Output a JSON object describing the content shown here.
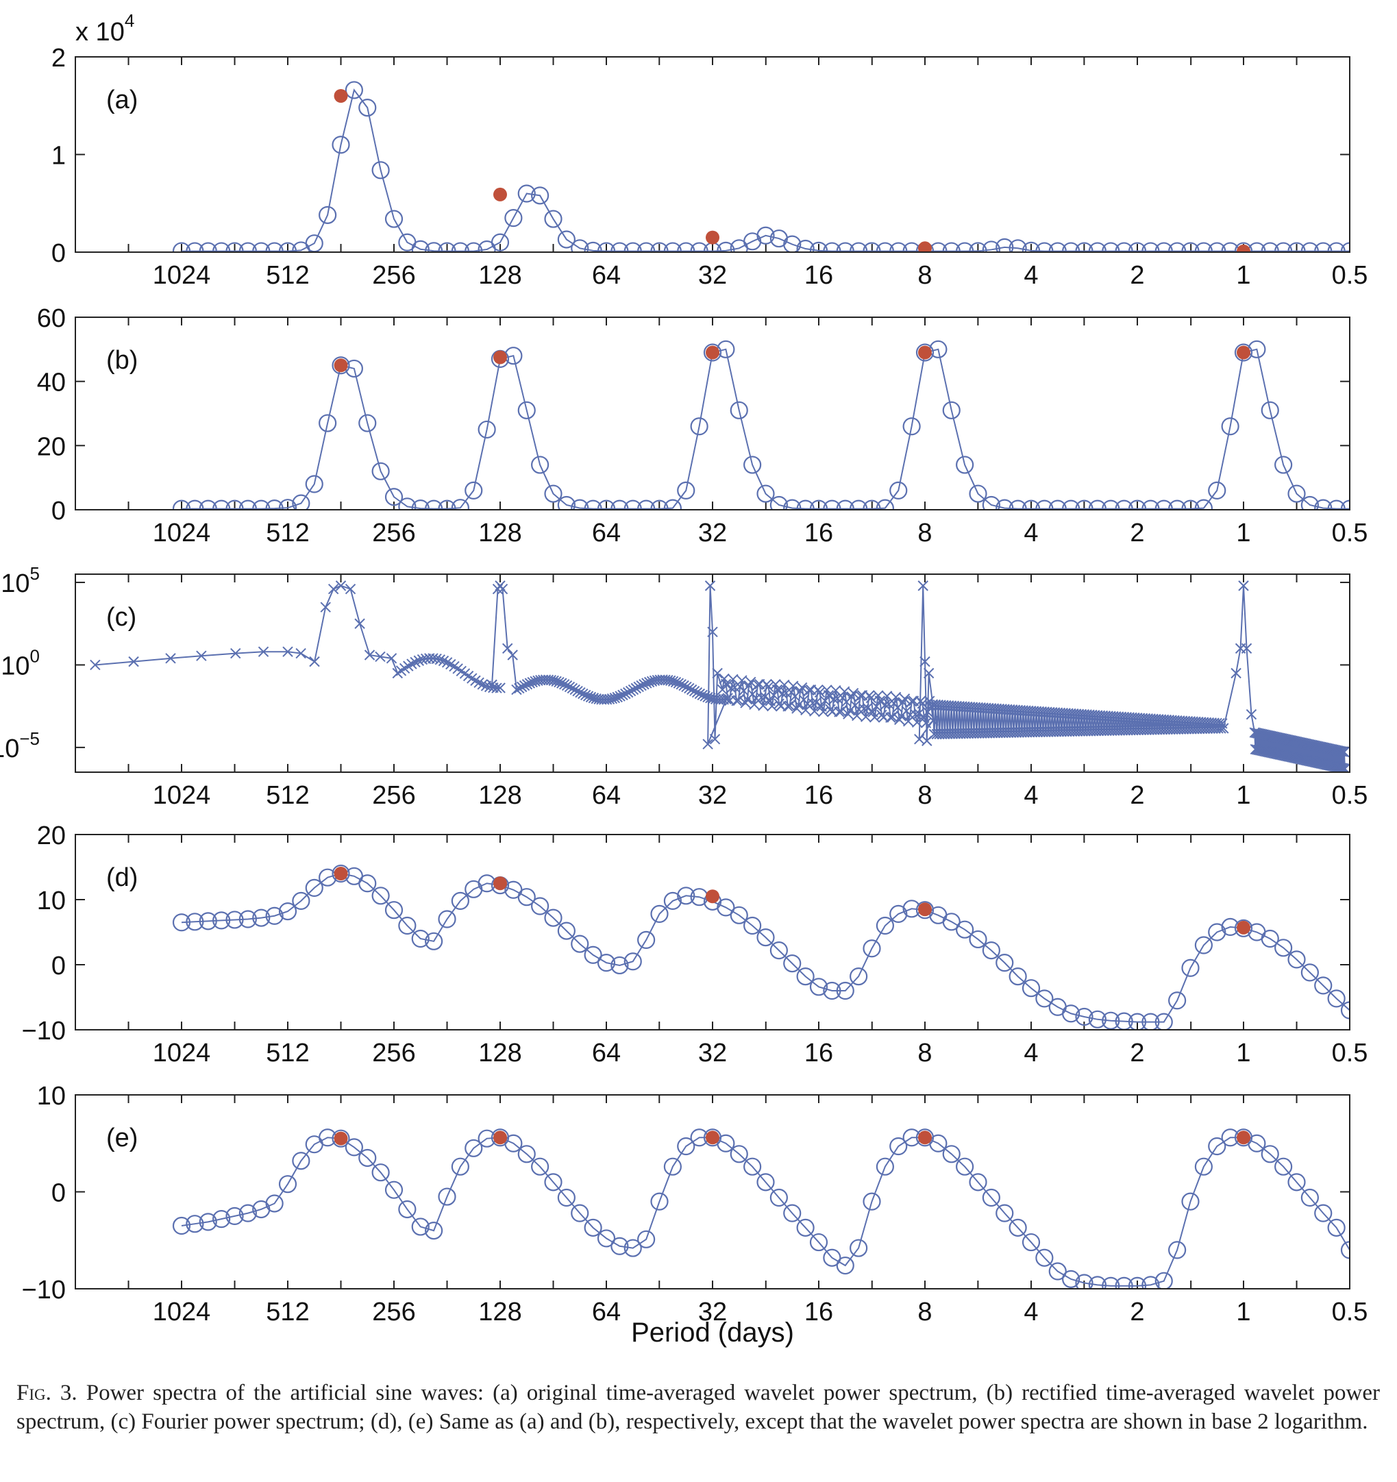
{
  "colors": {
    "line": "#5b70b0",
    "peak": "#c0503a",
    "axis": "#222222"
  },
  "x_tick_labels": [
    "1024",
    "512",
    "256",
    "128",
    "64",
    "32",
    "16",
    "8",
    "4",
    "2",
    "1",
    "0.5"
  ],
  "x_axis_label": "Period (days)",
  "caption": {
    "lead": "Fig. 3.",
    "text": "Power spectra of the artificial sine waves: (a) original time-averaged wavelet power spectrum, (b) rectified time-averaged wavelet power spectrum, (c) Fourier power spectrum; (d), (e) Same as (a) and (b), respectively, except that the wavelet power spectra are shown in base 2 logarithm."
  },
  "chart_data": [
    {
      "id": "a",
      "label": "(a)",
      "type": "line",
      "marker": "circle",
      "x_axis": "period_days_log2",
      "x_range": [
        0.5,
        2048
      ],
      "ylim": [
        0,
        20000
      ],
      "y_ticks": [
        0,
        10000,
        20000
      ],
      "y_tick_labels": [
        "0",
        "1",
        "2"
      ],
      "y_multiplier_label": "x 10",
      "y_multiplier_exponent": "4",
      "grid": false,
      "x_start_period": 1024,
      "x_end_period": 0.5,
      "points_per_octave": 8,
      "y": [
        100,
        100,
        100,
        100,
        100,
        100,
        100,
        100,
        100,
        180,
        900,
        3800,
        11000,
        16600,
        14800,
        8400,
        3400,
        1000,
        300,
        120,
        100,
        100,
        100,
        280,
        1000,
        3500,
        6000,
        5800,
        3400,
        1300,
        400,
        150,
        100,
        100,
        100,
        100,
        100,
        100,
        100,
        100,
        100,
        150,
        400,
        1100,
        1700,
        1400,
        800,
        350,
        150,
        100,
        100,
        100,
        100,
        100,
        100,
        100,
        100,
        100,
        100,
        100,
        110,
        250,
        500,
        400,
        150,
        100,
        100,
        100,
        100,
        100,
        100,
        100,
        100,
        100,
        100,
        100,
        100,
        100,
        100,
        100,
        100,
        100,
        100,
        100,
        100,
        100,
        100,
        100,
        100
      ],
      "peaks": [
        {
          "x": 362,
          "y": 16000
        },
        {
          "x": 128,
          "y": 5900
        },
        {
          "x": 32,
          "y": 1500
        },
        {
          "x": 8,
          "y": 400
        },
        {
          "x": 1,
          "y": 80
        }
      ]
    },
    {
      "id": "b",
      "label": "(b)",
      "type": "line",
      "marker": "circle",
      "x_axis": "period_days_log2",
      "x_range": [
        0.5,
        2048
      ],
      "ylim": [
        0,
        60
      ],
      "y_ticks": [
        0,
        20,
        40,
        60
      ],
      "y_tick_labels": [
        "0",
        "20",
        "40",
        "60"
      ],
      "grid": false,
      "x_start_period": 1024,
      "x_end_period": 0.5,
      "points_per_octave": 8,
      "y": [
        0.3,
        0.3,
        0.3,
        0.3,
        0.3,
        0.3,
        0.3,
        0.4,
        0.6,
        2,
        8,
        27,
        45,
        44,
        27,
        12,
        4,
        1,
        0.4,
        0.3,
        0.3,
        0.6,
        6,
        25,
        47,
        48,
        31,
        14,
        5,
        1.5,
        0.5,
        0.3,
        0.3,
        0.3,
        0.3,
        0.3,
        0.3,
        0.5,
        6,
        26,
        49,
        50,
        31,
        14,
        5,
        1.5,
        0.5,
        0.3,
        0.3,
        0.3,
        0.3,
        0.3,
        0.3,
        0.5,
        6,
        26,
        49,
        50,
        31,
        14,
        5,
        1.5,
        0.5,
        0.3,
        0.3,
        0.3,
        0.3,
        0.3,
        0.3,
        0.3,
        0.3,
        0.3,
        0.3,
        0.3,
        0.3,
        0.3,
        0.3,
        0.5,
        6,
        26,
        49,
        50,
        31,
        14,
        5,
        1.5,
        0.5,
        0.3,
        0.3
      ],
      "peaks": [
        {
          "x": 362,
          "y": 45
        },
        {
          "x": 128,
          "y": 47.5
        },
        {
          "x": 32,
          "y": 49
        },
        {
          "x": 8,
          "y": 49
        },
        {
          "x": 1,
          "y": 49
        }
      ]
    },
    {
      "id": "c",
      "label": "(c)",
      "type": "line",
      "marker": "x",
      "y_scale": "log",
      "ylim_exponent": [
        -6.5,
        5.5
      ],
      "y_tick_exponents": [
        -5,
        0,
        5
      ],
      "y_tick_base": "10",
      "grid": false,
      "note": "Fourier power spectrum, log y-axis",
      "peak_periods": [
        362,
        128,
        32,
        8,
        1
      ],
      "peak_value_exponent": 4.8,
      "low_freq_points": [
        {
          "x": 1800,
          "e": 0.0
        },
        {
          "x": 1400,
          "e": 0.2
        },
        {
          "x": 1100,
          "e": 0.4
        },
        {
          "x": 900,
          "e": 0.55
        },
        {
          "x": 720,
          "e": 0.7
        },
        {
          "x": 600,
          "e": 0.8
        },
        {
          "x": 512,
          "e": 0.8
        },
        {
          "x": 470,
          "e": 0.7
        },
        {
          "x": 430,
          "e": 0.2
        }
      ]
    },
    {
      "id": "d",
      "label": "(d)",
      "type": "line",
      "marker": "circle",
      "x_axis": "period_days_log2",
      "x_range": [
        0.5,
        2048
      ],
      "ylim": [
        -10,
        20
      ],
      "y_ticks": [
        -10,
        0,
        10,
        20
      ],
      "y_tick_labels": [
        "−10",
        "0",
        "10",
        "20"
      ],
      "grid": false,
      "x_start_period": 1024,
      "x_end_period": 0.5,
      "points_per_octave": 8,
      "y": [
        6.5,
        6.6,
        6.7,
        6.8,
        6.9,
        7.0,
        7.2,
        7.5,
        8.2,
        9.8,
        11.8,
        13.4,
        14.0,
        13.6,
        12.5,
        10.6,
        8.4,
        6.0,
        4.0,
        3.6,
        7.0,
        9.8,
        11.6,
        12.5,
        12.2,
        11.5,
        10.4,
        9.0,
        7.2,
        5.2,
        3.2,
        1.5,
        0.3,
        -0.1,
        0.5,
        3.8,
        7.8,
        9.8,
        10.6,
        10.4,
        9.7,
        8.8,
        7.6,
        6.0,
        4.2,
        2.2,
        0.2,
        -1.8,
        -3.4,
        -4.0,
        -4.0,
        -1.8,
        2.5,
        6.0,
        7.8,
        8.6,
        8.4,
        7.6,
        6.6,
        5.4,
        3.9,
        2.2,
        0.3,
        -1.8,
        -3.6,
        -5.2,
        -6.5,
        -7.5,
        -8.0,
        -8.4,
        -8.6,
        -8.7,
        -8.8,
        -8.8,
        -8.8,
        -5.5,
        -0.5,
        3.0,
        5.0,
        5.8,
        5.6,
        5.0,
        4.0,
        2.6,
        0.8,
        -1.2,
        -3.2,
        -5.2,
        -7.0
      ],
      "peaks": [
        {
          "x": 362,
          "y": 14
        },
        {
          "x": 128,
          "y": 12.5
        },
        {
          "x": 32,
          "y": 10.5
        },
        {
          "x": 8,
          "y": 8.5
        },
        {
          "x": 1,
          "y": 5.7
        }
      ]
    },
    {
      "id": "e",
      "label": "(e)",
      "type": "line",
      "marker": "circle",
      "x_axis": "period_days_log2",
      "x_range": [
        0.5,
        2048
      ],
      "ylim": [
        -10,
        10
      ],
      "y_ticks": [
        -10,
        0,
        10
      ],
      "y_tick_labels": [
        "−10",
        "0",
        "10"
      ],
      "grid": false,
      "x_start_period": 1024,
      "x_end_period": 0.5,
      "points_per_octave": 8,
      "y": [
        -3.5,
        -3.3,
        -3.1,
        -2.8,
        -2.5,
        -2.2,
        -1.8,
        -1.2,
        0.8,
        3.2,
        4.9,
        5.6,
        5.5,
        4.6,
        3.5,
        2.0,
        0.2,
        -1.8,
        -3.6,
        -4.0,
        -0.5,
        2.6,
        4.5,
        5.5,
        5.6,
        5.0,
        3.9,
        2.6,
        1.0,
        -0.6,
        -2.2,
        -3.7,
        -4.8,
        -5.6,
        -5.8,
        -4.9,
        -1.0,
        2.6,
        4.7,
        5.6,
        5.6,
        5.0,
        3.9,
        2.6,
        1.0,
        -0.6,
        -2.2,
        -3.7,
        -5.2,
        -6.8,
        -7.6,
        -5.8,
        -1.0,
        2.6,
        4.7,
        5.6,
        5.6,
        5.0,
        3.9,
        2.6,
        1.0,
        -0.6,
        -2.2,
        -3.7,
        -5.2,
        -6.8,
        -8.2,
        -9.0,
        -9.4,
        -9.6,
        -9.7,
        -9.7,
        -9.7,
        -9.6,
        -9.2,
        -6.0,
        -1.0,
        2.6,
        4.7,
        5.6,
        5.6,
        5.0,
        3.9,
        2.6,
        1.0,
        -0.6,
        -2.2,
        -3.7,
        -6.0
      ],
      "peaks": [
        {
          "x": 362,
          "y": 5.5
        },
        {
          "x": 128,
          "y": 5.6
        },
        {
          "x": 32,
          "y": 5.6
        },
        {
          "x": 8,
          "y": 5.6
        },
        {
          "x": 1,
          "y": 5.6
        }
      ]
    }
  ]
}
